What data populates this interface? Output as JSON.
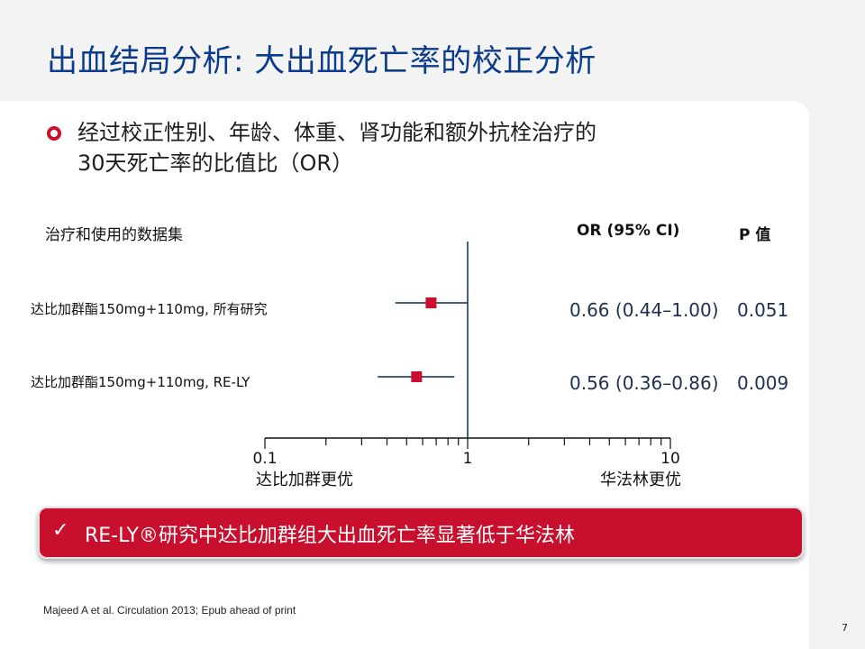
{
  "slide": {
    "title": "出血结局分析: 大出血死亡率的校正分析",
    "bullet_line1": "经过校正性别、年龄、体重、肾功能和额外抗栓治疗的",
    "bullet_line2": "30天死亡率的比值比（OR）",
    "callout": "RE-LY®研究中达比加群组大出血死亡率显著低于华法林",
    "callout_icon": "check-icon",
    "reference": "Majeed A et al. Circulation 2013; Epub ahead of print",
    "page_number": "7",
    "colors": {
      "title": "#0b3b8c",
      "accent": "#c8102e",
      "text": "#1d1d1d"
    }
  },
  "chart_data": {
    "type": "forest",
    "header_dataset": "治疗和使用的数据集",
    "header_or": "OR (95% CI)",
    "header_p": "P 值",
    "x_scale": "log",
    "xlim": [
      0.1,
      10
    ],
    "ticks": [
      0.1,
      1,
      10
    ],
    "tick_labels": [
      "0.1",
      "1",
      "10"
    ],
    "reference_value": 1,
    "left_label": "达比加群更优",
    "right_label": "华法林更优",
    "rows": [
      {
        "label": "达比加群酯150mg+110mg, 所有研究",
        "or": 0.66,
        "ci_low": 0.44,
        "ci_high": 1.0,
        "or_text": "0.66 (0.44–1.00)",
        "p": "0.051"
      },
      {
        "label": "达比加群酯150mg+110mg, RE-LY",
        "or": 0.56,
        "ci_low": 0.36,
        "ci_high": 0.86,
        "or_text": "0.56 (0.36–0.86)",
        "p": "0.009"
      }
    ]
  }
}
